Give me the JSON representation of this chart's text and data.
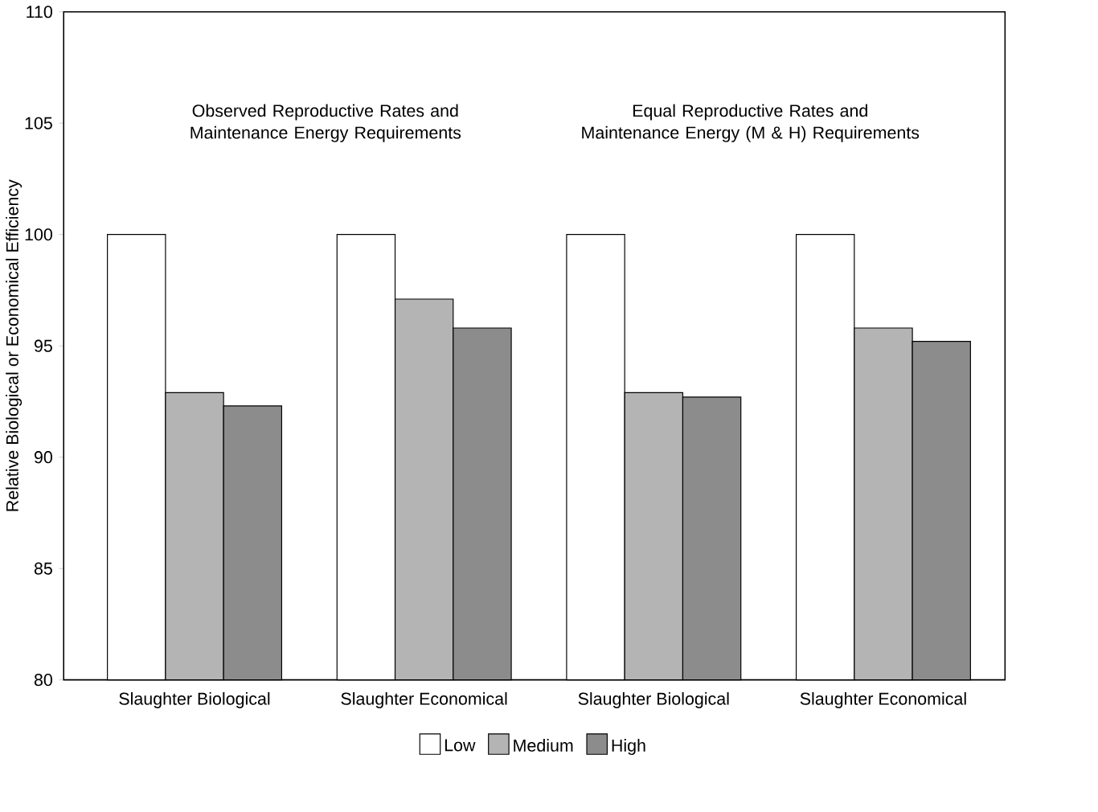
{
  "chart_data": {
    "type": "bar",
    "ylabel": "Relative Biological or Economical Efficiency",
    "categories": [
      "Slaughter Biological",
      "Slaughter Economical",
      "Slaughter Biological",
      "Slaughter Economical"
    ],
    "series": [
      {
        "name": "Low",
        "color": "#ffffff",
        "values": [
          100,
          100,
          100,
          100
        ]
      },
      {
        "name": "Medium",
        "color": "#b4b4b4",
        "values": [
          92.9,
          97.1,
          92.9,
          95.8
        ]
      },
      {
        "name": "High",
        "color": "#8c8c8c",
        "values": [
          92.3,
          95.8,
          92.7,
          95.2
        ]
      }
    ],
    "annotations": [
      "Observed Reproductive Rates and Maintenance Energy Requirements",
      "Equal Reproductive Rates and Maintenance Energy (M & H) Requirements"
    ],
    "ylim": [
      80,
      110
    ],
    "yticks": [
      80,
      85,
      90,
      95,
      100,
      105,
      110
    ],
    "legend": "bottom",
    "grid": false
  }
}
